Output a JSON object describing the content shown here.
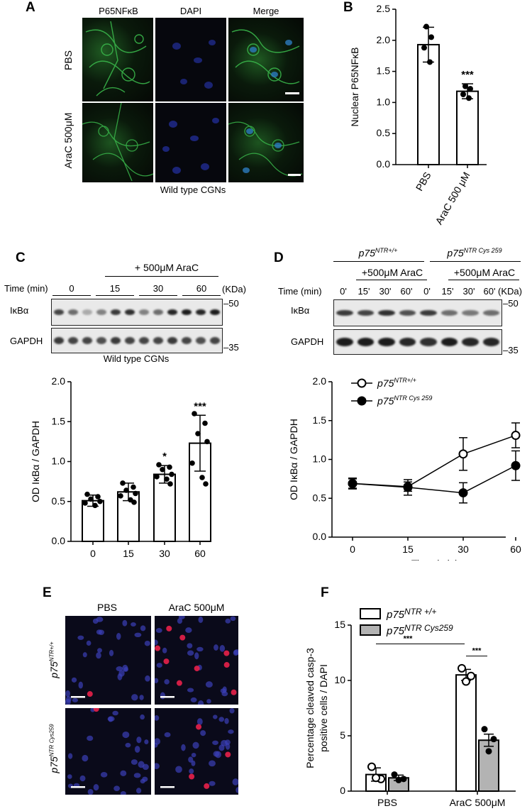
{
  "panels": {
    "A": "A",
    "B": "B",
    "C": "C",
    "D": "D",
    "E": "E",
    "F": "F"
  },
  "panel_a": {
    "col_headers": [
      "P65NFκB",
      "DAPI",
      "Merge"
    ],
    "row_labels": [
      "PBS",
      "AraC 500μM"
    ],
    "caption": "Wild type CGNs"
  },
  "panel_c_blot": {
    "treatment": "+ 500μM AraC",
    "time_label": "Time (min)",
    "times": [
      "0",
      "15",
      "30",
      "60"
    ],
    "kda": "(KDa)",
    "row1": "IκBα",
    "row2": "GAPDH",
    "marker_top": "–50",
    "marker_bottom": "–35",
    "caption": "Wild type CGNs"
  },
  "panel_d_blot": {
    "group1": "p75",
    "group1_sup": "NTR+/+",
    "group2": "p75",
    "group2_sup": "NTR Cys 259",
    "treatment": "+500μM AraC",
    "time_label": "Time (min)",
    "times": [
      "0'",
      "15'",
      "30'",
      "60'",
      "0'",
      "15'",
      "30'",
      "60'"
    ],
    "kda": "(KDa)",
    "row1": "IκBα",
    "row2": "GAPDH",
    "marker_top": "–50",
    "marker_bottom": "–35"
  },
  "panel_e": {
    "col_headers": [
      "PBS",
      "AraC 500μM"
    ],
    "row1_base": "p75",
    "row1_sup": "NTR+/+",
    "row2_base": "p75",
    "row2_sup": "NTR Cys259"
  },
  "colors": {
    "marker": "#000000",
    "bar_fill_1": "#ffffff",
    "bar_fill_2": "#b3b3b3",
    "axis": "#000000"
  },
  "chart_data": [
    {
      "id": "B",
      "type": "bar",
      "categories": [
        "PBS",
        "AraC 500 μM"
      ],
      "values": [
        1.93,
        1.18
      ],
      "errors": [
        0.28,
        0.12
      ],
      "points": [
        [
          2.22,
          2.05,
          1.88,
          1.65
        ],
        [
          1.26,
          1.22,
          1.13,
          1.07
        ]
      ],
      "annotations": [
        "",
        "***"
      ],
      "ylabel": "Nuclear P65NFκB",
      "ylim": [
        0,
        2.5
      ],
      "yticks": [
        0.0,
        0.5,
        1.0,
        1.5,
        2.0,
        2.5
      ],
      "ytick_labels": [
        "0.0",
        "0.5",
        "1.0",
        "1.5",
        "2.0",
        "2.5"
      ]
    },
    {
      "id": "C",
      "type": "bar",
      "categories": [
        "0",
        "15",
        "30",
        "60"
      ],
      "values": [
        0.51,
        0.62,
        0.84,
        1.23
      ],
      "errors": [
        0.07,
        0.11,
        0.11,
        0.35
      ],
      "points": [
        [
          0.59,
          0.56,
          0.53,
          0.5,
          0.48,
          0.45
        ],
        [
          0.73,
          0.68,
          0.64,
          0.6,
          0.57,
          0.52,
          0.49
        ],
        [
          0.96,
          0.93,
          0.9,
          0.84,
          0.81,
          0.78,
          0.72
        ],
        [
          1.6,
          1.48,
          1.35,
          1.25,
          0.98,
          0.8,
          0.72
        ]
      ],
      "annotations": [
        "",
        "",
        "*",
        "***"
      ],
      "xlabel": "Time (min)",
      "ylabel": "OD IκBα / GAPDH",
      "ylim": [
        0,
        2.0
      ],
      "yticks": [
        0.0,
        0.5,
        1.0,
        1.5,
        2.0
      ],
      "ytick_labels": [
        "0.0",
        "0.5",
        "1.0",
        "1.5",
        "2.0"
      ]
    },
    {
      "id": "D",
      "type": "line",
      "x": [
        0,
        15,
        30,
        60
      ],
      "series": [
        {
          "name": "p75NTR+/+",
          "name_base": "p75",
          "name_sup": "NTR+/+",
          "marker": "open",
          "values": [
            0.69,
            0.65,
            1.07,
            1.31
          ],
          "errors": [
            0.07,
            0.06,
            0.21,
            0.16
          ]
        },
        {
          "name": "p75NTR Cys 259",
          "name_base": "p75",
          "name_sup": "NTR Cys 259",
          "marker": "filled",
          "values": [
            0.69,
            0.64,
            0.57,
            0.92
          ],
          "errors": [
            0.06,
            0.1,
            0.13,
            0.19
          ]
        }
      ],
      "xlabel": "Time (min)",
      "ylabel": "OD IκBα / GAPDH",
      "xticks": [
        0,
        15,
        30,
        60
      ],
      "xtick_labels": [
        "0",
        "15",
        "30",
        "60"
      ],
      "ylim": [
        0,
        2.0
      ],
      "yticks": [
        0.0,
        0.5,
        1.0,
        1.5,
        2.0
      ],
      "ytick_labels": [
        "0.0",
        "0.5",
        "1.0",
        "1.5",
        "2.0"
      ],
      "legend": "top-left"
    },
    {
      "id": "F",
      "type": "bar",
      "categories": [
        "PBS",
        "AraC 500μM"
      ],
      "series": [
        {
          "name": "p75NTR +/+",
          "name_base": "p75",
          "name_sup": "NTR +/+",
          "values": [
            1.5,
            10.5
          ],
          "errors": [
            0.6,
            0.5
          ],
          "points": [
            [
              2.2,
              1.1,
              1.2
            ],
            [
              11.1,
              10.4,
              9.9
            ]
          ]
        },
        {
          "name": "p75NTR Cys259",
          "name_base": "p75",
          "name_sup": "NTR Cys259",
          "values": [
            1.2,
            4.6
          ],
          "errors": [
            0.25,
            0.55
          ],
          "points": [
            [
              1.5,
              1.1,
              1.0
            ],
            [
              5.6,
              4.7,
              3.6
            ]
          ]
        }
      ],
      "significance": [
        "***",
        "***"
      ],
      "ylabel_line1": "Percentage cleaved casp-3",
      "ylabel_line2": "positive cells / DAPI",
      "ylim": [
        0,
        15
      ],
      "yticks": [
        0,
        5,
        10,
        15
      ],
      "ytick_labels": [
        "0",
        "5",
        "10",
        "15"
      ],
      "legend": "top-left"
    }
  ]
}
